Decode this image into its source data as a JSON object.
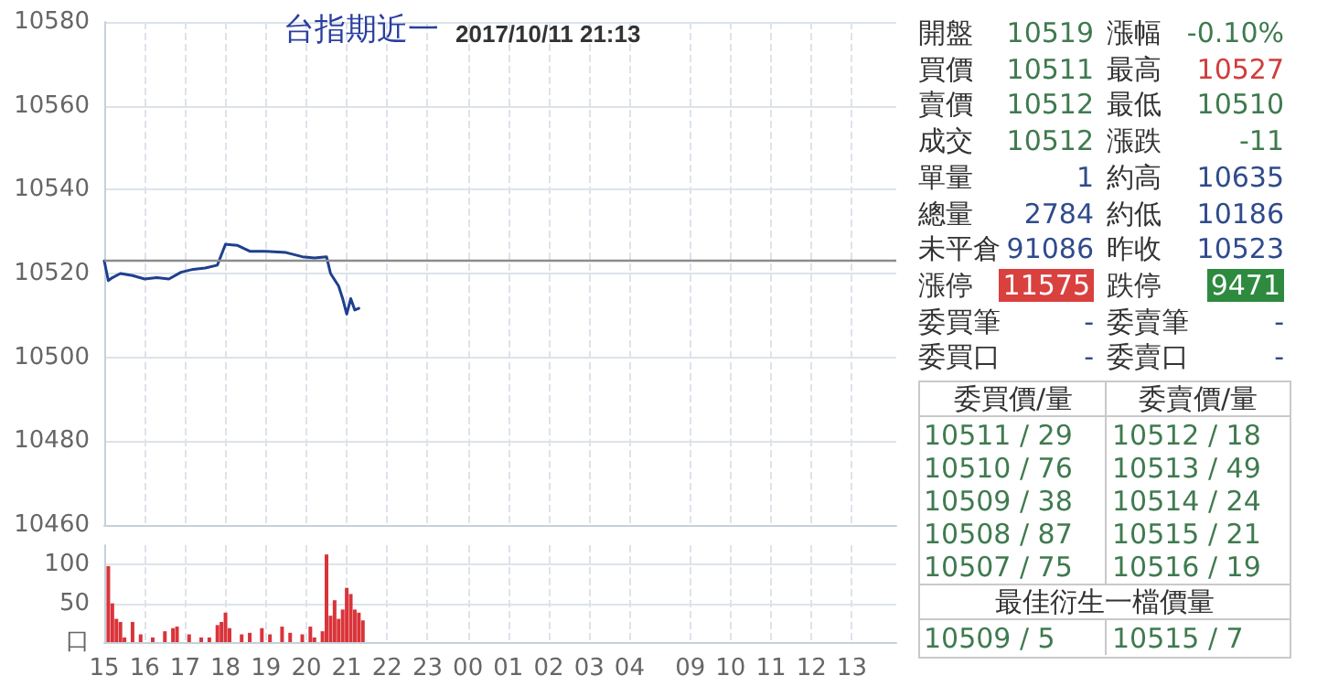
{
  "chart_data": [
    {
      "type": "line",
      "title": "台指期近一",
      "subtitle": "2017/10/11 21:13",
      "ylim": [
        10460,
        10580
      ],
      "categories": [
        "15",
        null,
        null,
        null,
        null,
        null,
        null,
        null,
        null,
        null,
        "16",
        null,
        null,
        null,
        null,
        null,
        null,
        null,
        null,
        null,
        "17",
        null,
        null,
        null,
        null,
        null,
        null,
        null,
        null,
        null,
        "18",
        null,
        null,
        null,
        null,
        null,
        null,
        null,
        null,
        null,
        "19",
        null,
        null,
        null,
        null,
        null,
        null,
        null,
        null,
        null,
        "20",
        null,
        null,
        null,
        null,
        null,
        null,
        null,
        null,
        null,
        "21",
        null,
        null,
        null,
        null,
        null,
        null,
        null,
        null,
        null,
        "22",
        null,
        null,
        null,
        null,
        null,
        null,
        null,
        null,
        null,
        "23",
        null,
        null,
        null,
        null,
        null,
        null,
        null,
        null,
        null,
        "00",
        null,
        null,
        null,
        null,
        null,
        null,
        null,
        null,
        null,
        "01",
        null,
        null,
        null,
        null,
        null,
        null,
        null,
        null,
        null,
        "02",
        null,
        null,
        null,
        null,
        null,
        null,
        null,
        null,
        null,
        "03",
        null,
        null,
        null,
        null,
        null,
        null,
        null,
        null,
        null,
        "04",
        null,
        null,
        null,
        null,
        null,
        null,
        null,
        null,
        null,
        null,
        null,
        null,
        null,
        null,
        "09",
        null,
        null,
        null,
        null,
        null,
        null,
        null,
        null,
        null,
        "10",
        null,
        null,
        null,
        null,
        null,
        null,
        null,
        null,
        null,
        "11",
        null,
        null,
        null,
        null,
        null,
        null,
        null,
        null,
        null,
        "12",
        null,
        null,
        null,
        null,
        null,
        null,
        null,
        null,
        null,
        "13",
        null,
        null,
        null,
        null,
        null,
        null,
        null,
        null,
        null,
        null,
        null
      ],
      "yticks": [
        10460,
        10480,
        10500,
        10520,
        10540,
        10560,
        10580
      ],
      "tick_labels": "y",
      "grid": true,
      "ref_lines": [
        {
          "axis": "y",
          "value": 10523,
          "color": "#8c8c8c"
        }
      ],
      "series": [
        {
          "color": "#1f3f8f",
          "values": [
            10523,
            10518.3,
            10519,
            null,
            10520,
            null,
            null,
            10519.5,
            null,
            null,
            10518.7,
            null,
            null,
            10519,
            null,
            null,
            10518.7,
            null,
            null,
            10520.3,
            null,
            null,
            10521,
            null,
            null,
            10521.3,
            null,
            null,
            10522,
            null,
            10527,
            null,
            null,
            10526.7,
            null,
            null,
            10525.3,
            null,
            null,
            null,
            10525.3,
            null,
            null,
            null,
            null,
            10525,
            null,
            null,
            null,
            10524,
            null,
            null,
            10523.7,
            null,
            null,
            10524,
            10520,
            null,
            10517,
            10514,
            10510.3,
            10514,
            10511.3,
            10511.7,
            null,
            null,
            null,
            null,
            null,
            null,
            null,
            null,
            null,
            null,
            null,
            null,
            null,
            null,
            null,
            null,
            null,
            null,
            null,
            null,
            null,
            null,
            null,
            null,
            null,
            null,
            null,
            null,
            null,
            null,
            null,
            null,
            null,
            null,
            null,
            null,
            null,
            null,
            null,
            null,
            null,
            null,
            null,
            null,
            null,
            null,
            null,
            null,
            null,
            null,
            null,
            null,
            null,
            null,
            null,
            null,
            null,
            null,
            null,
            null,
            null,
            null,
            null,
            null,
            null,
            null,
            null,
            null,
            null,
            null,
            null,
            null,
            null,
            null,
            null,
            null,
            null,
            null,
            null,
            null,
            null,
            null,
            null,
            null,
            null,
            null,
            null,
            null,
            null,
            null,
            null,
            null,
            null,
            null,
            null,
            null,
            null,
            null,
            null,
            null,
            null,
            null,
            null,
            null,
            null,
            null,
            null,
            null,
            null,
            null,
            null,
            null,
            null,
            null,
            null,
            null,
            null,
            null,
            null,
            null,
            null,
            null,
            null,
            null,
            null,
            null,
            null,
            null,
            null,
            null,
            null,
            null,
            null
          ]
        }
      ]
    },
    {
      "type": "bar",
      "ylim": [
        0,
        125
      ],
      "categories": [
        "15",
        null,
        null,
        null,
        null,
        null,
        null,
        null,
        null,
        null,
        "16",
        null,
        null,
        null,
        null,
        null,
        null,
        null,
        null,
        null,
        "17",
        null,
        null,
        null,
        null,
        null,
        null,
        null,
        null,
        null,
        "18",
        null,
        null,
        null,
        null,
        null,
        null,
        null,
        null,
        null,
        "19",
        null,
        null,
        null,
        null,
        null,
        null,
        null,
        null,
        null,
        "20",
        null,
        null,
        null,
        null,
        null,
        null,
        null,
        null,
        null,
        "21",
        null,
        null,
        null,
        null,
        null,
        null,
        null,
        null,
        null,
        "22",
        null,
        null,
        null,
        null,
        null,
        null,
        null,
        null,
        null,
        "23",
        null,
        null,
        null,
        null,
        null,
        null,
        null,
        null,
        null,
        "00",
        null,
        null,
        null,
        null,
        null,
        null,
        null,
        null,
        null,
        "01",
        null,
        null,
        null,
        null,
        null,
        null,
        null,
        null,
        null,
        "02",
        null,
        null,
        null,
        null,
        null,
        null,
        null,
        null,
        null,
        "03",
        null,
        null,
        null,
        null,
        null,
        null,
        null,
        null,
        null,
        "04",
        null,
        null,
        null,
        null,
        null,
        null,
        null,
        null,
        null,
        null,
        null,
        null,
        null,
        null,
        "09",
        null,
        null,
        null,
        null,
        null,
        null,
        null,
        null,
        null,
        "10",
        null,
        null,
        null,
        null,
        null,
        null,
        null,
        null,
        null,
        "11",
        null,
        null,
        null,
        null,
        null,
        null,
        null,
        null,
        null,
        "12",
        null,
        null,
        null,
        null,
        null,
        null,
        null,
        null,
        null,
        "13",
        null,
        null,
        null,
        null,
        null,
        null,
        null,
        null,
        null,
        null,
        null
      ],
      "yticks": [
        {
          "value": 0,
          "label": "口"
        },
        50,
        100
      ],
      "grid": true,
      "series": [
        {
          "color": "#d9343a",
          "values": [
            null,
            98,
            50,
            30,
            26,
            6,
            null,
            26,
            null,
            10,
            null,
            null,
            6,
            null,
            null,
            14,
            null,
            18,
            20,
            null,
            null,
            10,
            null,
            null,
            6,
            null,
            6,
            null,
            22,
            26,
            38,
            18,
            null,
            null,
            10,
            null,
            12,
            null,
            null,
            18,
            null,
            10,
            null,
            null,
            20,
            null,
            12,
            null,
            null,
            10,
            null,
            20,
            6,
            null,
            14,
            113,
            34,
            54,
            30,
            42,
            70,
            62,
            42,
            38,
            28,
            null,
            null,
            null,
            null,
            null,
            null,
            null,
            null,
            null,
            null,
            null,
            null,
            null,
            null,
            null,
            null,
            null,
            null,
            null,
            null,
            null,
            null,
            null,
            null,
            null,
            null,
            null,
            null,
            null,
            null,
            null,
            null,
            null,
            null,
            null,
            null,
            null,
            null,
            null,
            null,
            null,
            null,
            null,
            null,
            null,
            null,
            null,
            null,
            null,
            null,
            null,
            null,
            null,
            null,
            null,
            null,
            null,
            null,
            null,
            null,
            null,
            null,
            null,
            null,
            null,
            null,
            null,
            null,
            null,
            null,
            null,
            null,
            null,
            null,
            null,
            null,
            null,
            null,
            null,
            null,
            null,
            null,
            null,
            null,
            null,
            null,
            null,
            null,
            null,
            null,
            null,
            null,
            null,
            null,
            null,
            null,
            null,
            null,
            null,
            null,
            null,
            null,
            null,
            null,
            null,
            null,
            null,
            null,
            null,
            null,
            null,
            null,
            null,
            null,
            null,
            null,
            null,
            null,
            null,
            null,
            null,
            null,
            null,
            null,
            null,
            null,
            null,
            null,
            null,
            null,
            null,
            null
          ]
        }
      ]
    },
    {
      "type": "other",
      "annotations": [
        "開盤",
        "10519",
        "漲幅",
        "-0.10%",
        "買價",
        "10511",
        "最高",
        "10527",
        "賣價",
        "10512",
        "最低",
        "10510",
        "成交",
        "10512",
        "漲跌",
        "-11",
        "單量",
        "1",
        "約高",
        "10635",
        "總量",
        "2784",
        "約低",
        "10186",
        "未平倉",
        "91086",
        "昨收",
        "10523",
        "漲停",
        "11575",
        "跌停",
        "9471",
        "委買筆",
        "-",
        "委賣筆",
        "-",
        "委買口",
        "-",
        "委賣口",
        "-",
        "委買價/量",
        "委賣價/量",
        "10511 / 29",
        "10512 / 18",
        "10510 / 76",
        "10513 / 49",
        "10509 / 38",
        "10514 / 24",
        "10508 / 87",
        "10515 / 21",
        "10507 / 75",
        "10516 / 19",
        "最佳衍生一檔價量",
        "10509 / 5",
        "10515 / 7"
      ]
    }
  ]
}
